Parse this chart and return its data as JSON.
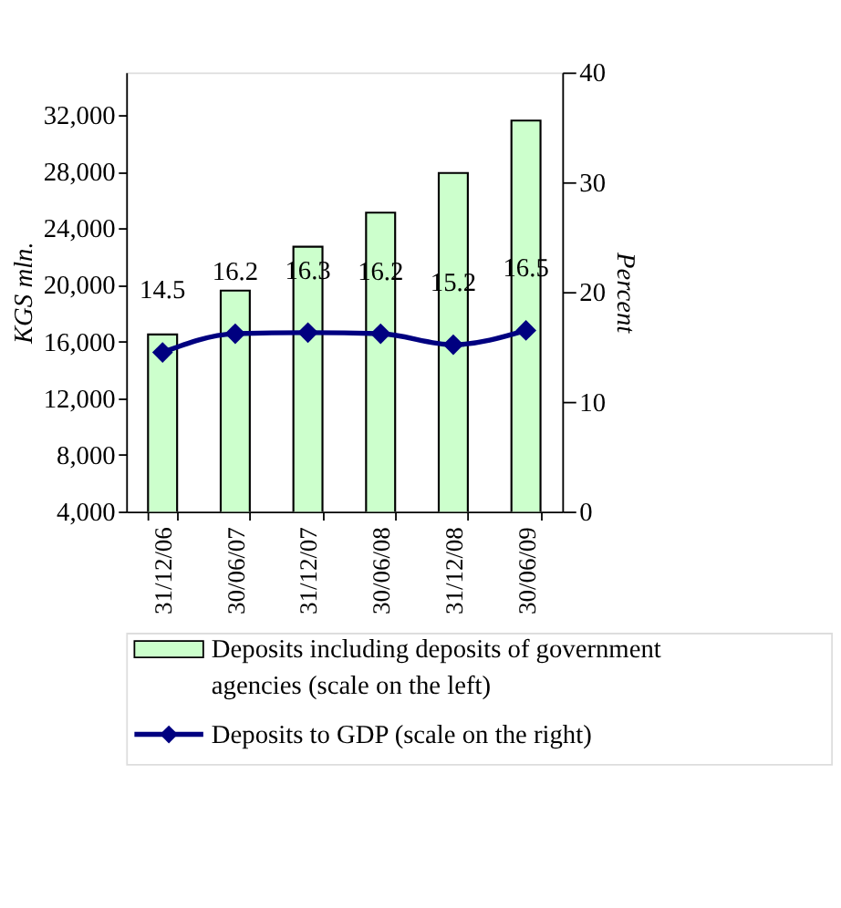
{
  "chart_data": {
    "type": "bar",
    "categories": [
      "31/12/06",
      "30/06/07",
      "31/12/07",
      "30/06/08",
      "31/12/08",
      "30/06/09"
    ],
    "series": [
      {
        "name": "Deposits including deposits of government agencies (scale on the left)",
        "color": "#ccffcc",
        "values": [
          16500,
          19600,
          22700,
          25100,
          27900,
          31600
        ]
      },
      {
        "name": "Deposits to GDP (scale on the right)",
        "type": "line",
        "axis": "y2",
        "color": "#000080",
        "values": [
          14.5,
          16.2,
          16.3,
          16.2,
          15.2,
          16.5
        ],
        "value_labels": [
          "14.5",
          "16.2",
          "16.3",
          "16.2",
          "15.2",
          "16.5"
        ]
      }
    ],
    "ylabel": "KGS mln.",
    "y2label": "Percent",
    "ylim": [
      4000,
      35000
    ],
    "yticks": [
      {
        "value": 4000,
        "label": "4,000"
      },
      {
        "value": 8000,
        "label": "8,000"
      },
      {
        "value": 12000,
        "label": "12,000"
      },
      {
        "value": 16000,
        "label": "16,000"
      },
      {
        "value": 20000,
        "label": "20,000"
      },
      {
        "value": 24000,
        "label": "24,000"
      },
      {
        "value": 28000,
        "label": "28,000"
      },
      {
        "value": 32000,
        "label": "32,000"
      }
    ],
    "y2lim": [
      0,
      40
    ],
    "y2ticks": [
      0,
      10,
      20,
      30,
      40
    ],
    "marker": "diamond",
    "legend": "bottom"
  }
}
